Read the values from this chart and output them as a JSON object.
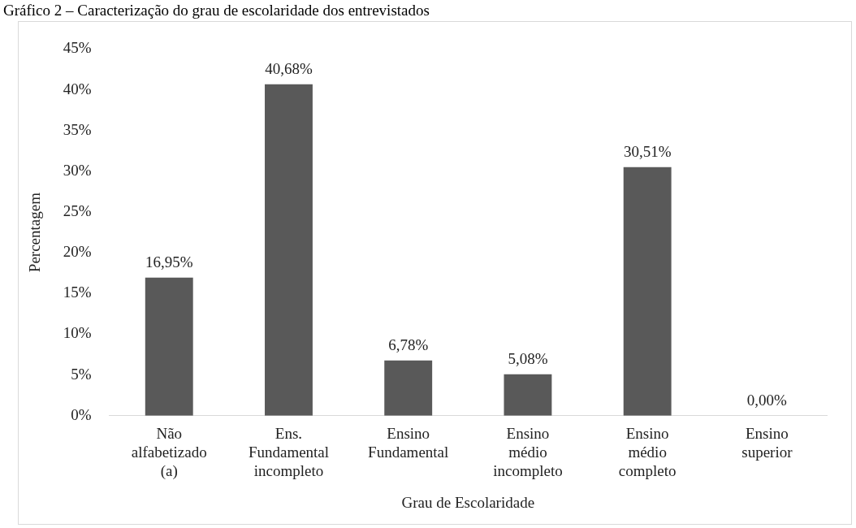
{
  "chart_data": {
    "type": "bar",
    "title": "Gráfico 2 – Caracterização do grau de escolaridade dos entrevistados",
    "xlabel": "Grau de Escolaridade",
    "ylabel": "Percentagem",
    "categories": [
      "Não\nalfabetizado\n(a)",
      "Ens.\nFundamental\nincompleto",
      "Ensino\nFundamental",
      "Ensino\nmédio\nincompleto",
      "Ensino\nmédio\ncompleto",
      "Ensino\nsuperior"
    ],
    "values": [
      16.95,
      40.68,
      6.78,
      5.08,
      30.51,
      0
    ],
    "value_labels": [
      "16,95%",
      "40,68%",
      "6,78%",
      "5,08%",
      "30,51%",
      "0,00%"
    ],
    "color": "#595959",
    "ylim": [
      0,
      45
    ],
    "yticks": [
      {
        "value": 0,
        "label": "0%"
      },
      {
        "value": 5,
        "label": "5%"
      },
      {
        "value": 10,
        "label": "10%"
      },
      {
        "value": 15,
        "label": "15%"
      },
      {
        "value": 20,
        "label": "20%"
      },
      {
        "value": 25,
        "label": "25%"
      },
      {
        "value": 30,
        "label": "30%"
      },
      {
        "value": 35,
        "label": "35%"
      },
      {
        "value": 40,
        "label": "40%"
      },
      {
        "value": 45,
        "label": "45%"
      }
    ],
    "grid": false,
    "legend": false
  }
}
